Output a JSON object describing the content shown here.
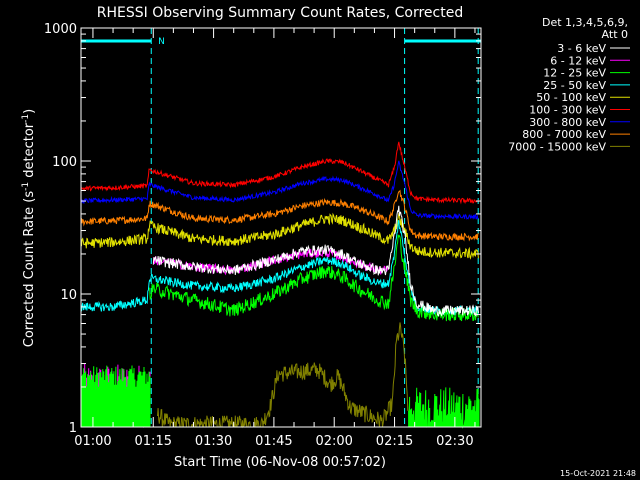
{
  "chart_data": {
    "type": "line",
    "title": "RHESSI Observing Summary Count Rates, Corrected",
    "xlabel": "Start Time (06-Nov-08 00:57:02)",
    "ylabel": "Corrected Count Rate (s",
    "ylabel_sup1": "-1",
    "ylabel_mid": " detector",
    "ylabel_sup2": "-1",
    "ylabel_end": ")",
    "y_scale": "log",
    "ylim": [
      1,
      1000
    ],
    "xlim_minutes": [
      57.03,
      156.5
    ],
    "x_ticks": [
      {
        "t": 60,
        "label": "01:00"
      },
      {
        "t": 75,
        "label": "01:15"
      },
      {
        "t": 90,
        "label": "01:30"
      },
      {
        "t": 105,
        "label": "01:45"
      },
      {
        "t": 120,
        "label": "02:00"
      },
      {
        "t": 135,
        "label": "02:15"
      },
      {
        "t": 150,
        "label": "02:30"
      }
    ],
    "y_ticks": [
      {
        "v": 1,
        "label": "1"
      },
      {
        "v": 10,
        "label": "10"
      },
      {
        "v": 100,
        "label": "100"
      },
      {
        "v": 1000,
        "label": "1000"
      }
    ],
    "legend_header": [
      "Det 1,3,4,5,6,9,",
      "Att 0"
    ],
    "legend_position": "right",
    "series": [
      {
        "name": "3 - 6 keV",
        "color": "#ffffff",
        "x": [
          57,
          70,
          74,
          75,
          85,
          95,
          105,
          112,
          118,
          122,
          126,
          131,
          133.5,
          135,
          136,
          137.5,
          139,
          140.5,
          145,
          156
        ],
        "values": [
          null,
          null,
          null,
          18,
          16,
          15,
          18,
          21,
          21.5,
          20,
          17,
          15,
          15,
          28,
          45,
          28,
          12,
          8.5,
          7.5,
          7.5
        ]
      },
      {
        "name": "6 - 12 keV",
        "color": "#ff00ff",
        "x": [
          57,
          70,
          74,
          75,
          85,
          95,
          105,
          112,
          118,
          122,
          126,
          131,
          133.5
        ],
        "values": [
          null,
          null,
          null,
          18,
          16,
          15,
          18,
          20,
          20.5,
          19,
          17,
          15,
          15
        ]
      },
      {
        "name": "12 - 25 keV",
        "color": "#00ff00",
        "x": [
          57,
          73.5,
          74,
          75,
          85,
          95,
          105,
          112,
          118,
          122,
          126,
          131,
          133.5,
          135,
          136,
          137.5,
          139,
          140.5,
          145,
          156
        ],
        "values": [
          null,
          null,
          10,
          11,
          9,
          7.5,
          10,
          13,
          15,
          13.5,
          11,
          9,
          8.5,
          16,
          28,
          16,
          9,
          7.5,
          7,
          7
        ]
      },
      {
        "name": "25 - 50 keV",
        "color": "#00ffff",
        "x": [
          57,
          65,
          73.5,
          74,
          75,
          85,
          95,
          105,
          112,
          118,
          122,
          126,
          131,
          133.5,
          135,
          136,
          137.5,
          139,
          140.5,
          145,
          156
        ],
        "values": [
          8,
          8,
          9,
          13,
          13,
          11.5,
          11,
          13,
          16,
          18,
          17,
          14,
          12,
          12,
          20,
          36,
          20,
          11,
          8,
          7.5,
          7.5
        ]
      },
      {
        "name": "50 - 100 keV",
        "color": "#e0e000",
        "x": [
          57,
          65,
          73.5,
          74,
          75,
          85,
          95,
          105,
          112,
          118,
          122,
          126,
          131,
          133.5,
          135,
          136,
          137.5,
          139,
          140.5,
          145,
          156
        ],
        "values": [
          24,
          24.5,
          26,
          33,
          32,
          26,
          25,
          28,
          33,
          37,
          36,
          32,
          27,
          25,
          30,
          38,
          30,
          23,
          21,
          20.5,
          20
        ]
      },
      {
        "name": "100 - 300 keV",
        "color": "#ff0000",
        "x": [
          57,
          65,
          73.5,
          74,
          75,
          85,
          95,
          105,
          112,
          118,
          122,
          126,
          131,
          133.5,
          135,
          136,
          137.5,
          139,
          140.5,
          145,
          156
        ],
        "values": [
          62,
          63,
          65,
          86,
          84,
          68,
          66,
          76,
          90,
          100,
          98,
          86,
          72,
          66,
          90,
          140,
          90,
          58,
          52,
          51,
          50
        ]
      },
      {
        "name": "300 - 800 keV",
        "color": "#0000ff",
        "x": [
          57,
          65,
          73.5,
          74,
          75,
          85,
          95,
          105,
          112,
          118,
          122,
          126,
          131,
          133.5,
          135,
          136,
          137.5,
          139,
          140.5,
          145,
          156
        ],
        "values": [
          50,
          51,
          52,
          67,
          65,
          53,
          51,
          58,
          68,
          73,
          72,
          64,
          55,
          50,
          68,
          98,
          68,
          43,
          39,
          38.5,
          38
        ]
      },
      {
        "name": "800 - 7000 keV",
        "color": "#ff8000",
        "x": [
          57,
          65,
          73.5,
          74,
          75,
          85,
          95,
          105,
          112,
          118,
          122,
          126,
          131,
          133.5,
          135,
          136,
          137.5,
          139,
          140.5,
          145,
          156
        ],
        "values": [
          35,
          35.5,
          37,
          48,
          47,
          37,
          36,
          40,
          46,
          49,
          48,
          44,
          38,
          35,
          46,
          62,
          46,
          30,
          27.5,
          27,
          27
        ]
      },
      {
        "name": "7000 - 15000 keV",
        "color": "#808000",
        "x": [
          57,
          75.5,
          76,
          79,
          102,
          104,
          106,
          116,
          119,
          121,
          124,
          132,
          134.5,
          135.5,
          136.5,
          137.5,
          138.5,
          156
        ],
        "values": [
          null,
          null,
          1.25,
          1.05,
          1.05,
          1.4,
          2.5,
          2.7,
          2.1,
          2.4,
          1.4,
          1.1,
          1.5,
          4.5,
          5.5,
          3.5,
          1.2,
          null
        ]
      }
    ],
    "annotations": [
      {
        "text": "N",
        "t": 76.2,
        "color": "#00ffff"
      }
    ],
    "saa_night_bars": [
      {
        "t_start": 57.03,
        "t_end": 74.5
      },
      {
        "t_start": 137.5,
        "t_end": 156.5
      }
    ],
    "dashed_markers_minutes": [
      74.5,
      137.5,
      155.8
    ],
    "colors": {
      "background": "#000000",
      "axes": "#ffffff",
      "marker": "#00ffff"
    }
  },
  "footer": {
    "timestamp": "15-Oct-2021 21:48"
  }
}
